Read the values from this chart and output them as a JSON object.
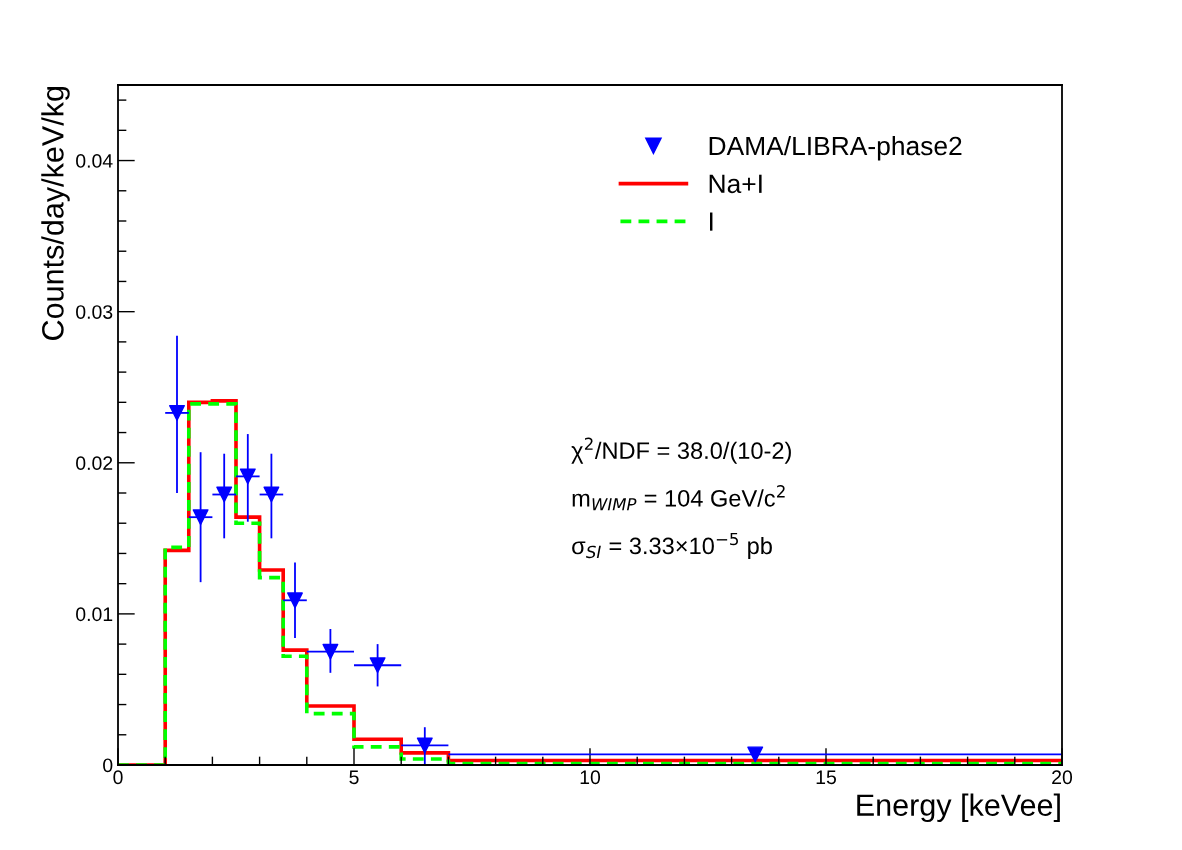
{
  "chart_data": {
    "type": "histogram",
    "xlabel": "Energy [keVee]",
    "ylabel": "Counts/day/keV/kg",
    "xlim": [
      0,
      20
    ],
    "ylim": [
      0,
      0.045
    ],
    "xticks": [
      0,
      5,
      10,
      15,
      20
    ],
    "yticks": [
      0,
      0.01,
      0.02,
      0.03,
      0.04
    ],
    "grid": false,
    "legend": "top right",
    "series": [
      {
        "name": "DAMA/LIBRA-phase2",
        "type": "scatter",
        "color": "#0000ff",
        "marker": "triangle",
        "x": [
          1.25,
          1.75,
          2.25,
          2.75,
          3.25,
          3.75,
          4.5,
          5.5,
          6.5,
          13.5
        ],
        "values": [
          0.0233,
          0.0164,
          0.0179,
          0.0191,
          0.0179,
          0.0109,
          0.0075,
          0.0066,
          0.0013,
          0.0007
        ],
        "errors": [
          [
            0.018,
            0.0284
          ],
          [
            0.0121,
            0.0207
          ],
          [
            0.015,
            0.0206
          ],
          [
            0.0161,
            0.0219
          ],
          [
            0.015,
            0.0206
          ],
          [
            0.0084,
            0.0134
          ],
          [
            0.0061,
            0.009
          ],
          [
            0.0052,
            0.008
          ],
          [
            0.0,
            0.0025
          ],
          null
        ],
        "xerrors": [
          0.25,
          0.25,
          0.25,
          0.25,
          0.25,
          0.25,
          0.5,
          0.5,
          0.5,
          6.5
        ]
      },
      {
        "name": "Na+I",
        "color": "#ff0000",
        "line_style": "solid",
        "bins": [
          0,
          1,
          1.5,
          2,
          2.5,
          3,
          3.5,
          4,
          5,
          6,
          7,
          20
        ],
        "values": [
          0,
          0.0142,
          0.024,
          0.0241,
          0.0164,
          0.0129,
          0.0076,
          0.0039,
          0.0017,
          0.0008,
          0.0003
        ]
      },
      {
        "name": "I",
        "color": "#00ff00",
        "line_style": "dashed",
        "bins": [
          0,
          1,
          1.5,
          2,
          2.5,
          3,
          3.5,
          4,
          5,
          6,
          7,
          20
        ],
        "values": [
          0,
          0.0144,
          0.0239,
          0.0239,
          0.016,
          0.0124,
          0.0072,
          0.0034,
          0.0012,
          0.0004,
          0.0001
        ]
      }
    ],
    "annotations": [
      "χ$^{2}$/NDF = 38.0/(10-2)",
      "m$_{WIMP}$ = 104 GeV/c$^{2}$",
      "σ$_{SI}$ = 3.33×10$^{−5}$ pb"
    ]
  }
}
